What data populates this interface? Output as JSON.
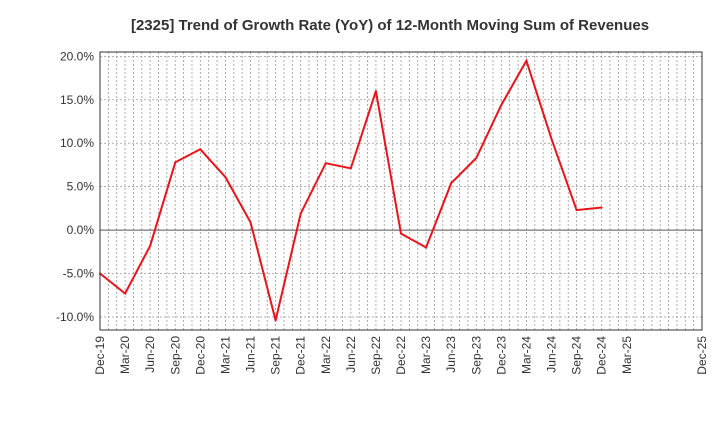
{
  "chart_data": {
    "type": "line",
    "title": "[2325]  Trend of Growth Rate (YoY) of 12-Month Moving Sum of Revenues",
    "xlabel": "",
    "ylabel": "",
    "ylim": [
      -11.5,
      20.5
    ],
    "y_ticks": [
      20.0,
      15.0,
      10.0,
      5.0,
      0.0,
      -5.0,
      -10.0
    ],
    "y_tick_labels": [
      "20.0%",
      "15.0%",
      "10.0%",
      "5.0%",
      "0.0%",
      "-5.0%",
      "-10.0%"
    ],
    "x_tick_labels": [
      "Dec-19",
      "Mar-20",
      "Jun-20",
      "Sep-20",
      "Dec-20",
      "Mar-21",
      "Jun-21",
      "Sep-21",
      "Dec-21",
      "Mar-22",
      "Jun-22",
      "Sep-22",
      "Dec-22",
      "Mar-23",
      "Jun-23",
      "Sep-23",
      "Dec-23",
      "Mar-24",
      "Jun-24",
      "Sep-24",
      "Dec-24",
      "Mar-25",
      "Dec-25"
    ],
    "grid": true,
    "series": [
      {
        "color": "#e8141c",
        "x": [
          "Dec-19",
          "Mar-20",
          "Jun-20",
          "Sep-20",
          "Dec-20",
          "Mar-21",
          "Jun-21",
          "Sep-21",
          "Dec-21",
          "Mar-22",
          "Jun-22",
          "Sep-22",
          "Dec-22",
          "Mar-23",
          "Jun-23",
          "Sep-23",
          "Dec-23",
          "Mar-24",
          "Jun-24",
          "Sep-24",
          "Dec-24"
        ],
        "values": [
          -5.0,
          -7.3,
          -1.8,
          7.8,
          9.3,
          6.1,
          0.9,
          -10.4,
          1.9,
          7.7,
          7.1,
          16.0,
          -0.4,
          -2.0,
          5.4,
          8.3,
          14.4,
          19.5,
          10.5,
          2.3,
          2.6
        ]
      }
    ]
  }
}
